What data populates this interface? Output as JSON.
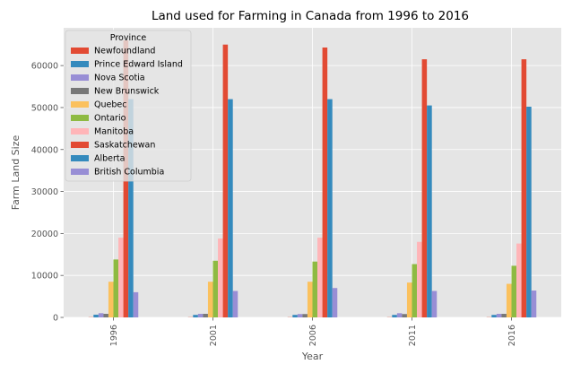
{
  "chart_data": {
    "type": "bar",
    "title": "Land used for Farming in Canada from 1996 to 2016",
    "xlabel": "Year",
    "ylabel": "Farm Land Size",
    "categories": [
      "1996",
      "2001",
      "2006",
      "2011",
      "2016"
    ],
    "ylim": [
      0,
      69000
    ],
    "yticks": [
      0,
      10000,
      20000,
      30000,
      40000,
      50000,
      60000
    ],
    "grid": true,
    "legend": {
      "title": "Province",
      "placement": "top-left"
    },
    "series": [
      {
        "name": "Newfoundland",
        "color": "#E24A33",
        "values": [
          50,
          50,
          50,
          50,
          50
        ]
      },
      {
        "name": "Prince Edward Island",
        "color": "#348ABD",
        "values": [
          650,
          600,
          600,
          600,
          600
        ]
      },
      {
        "name": "Nova Scotia",
        "color": "#988ED5",
        "values": [
          1000,
          850,
          800,
          1000,
          850
        ]
      },
      {
        "name": "New Brunswick",
        "color": "#777777",
        "values": [
          850,
          850,
          800,
          800,
          850
        ]
      },
      {
        "name": "Quebec",
        "color": "#FBC15E",
        "values": [
          8500,
          8500,
          8500,
          8300,
          8000
        ]
      },
      {
        "name": "Ontario",
        "color": "#8EBA42",
        "values": [
          13800,
          13500,
          13300,
          12700,
          12300
        ]
      },
      {
        "name": "Manitoba",
        "color": "#FFB5B8",
        "values": [
          19000,
          18800,
          19000,
          18000,
          17600
        ]
      },
      {
        "name": "Saskatchewan",
        "color": "#E24A33",
        "values": [
          66000,
          65000,
          64300,
          61500,
          61500
        ]
      },
      {
        "name": "Alberta",
        "color": "#348ABD",
        "values": [
          52000,
          52000,
          52000,
          50500,
          50200
        ]
      },
      {
        "name": "British Columbia",
        "color": "#988ED5",
        "values": [
          6000,
          6300,
          7000,
          6300,
          6400
        ]
      }
    ]
  }
}
